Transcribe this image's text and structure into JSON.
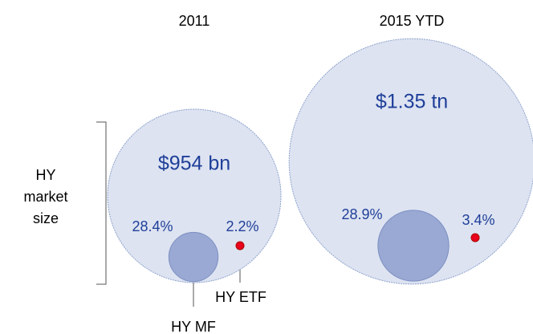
{
  "chart_data": {
    "type": "nested-bubble",
    "categories": [
      "2011",
      "2015 YTD"
    ],
    "values": [
      954,
      1350
    ],
    "value_labels": [
      "$954 bn",
      "$1.35 tn"
    ],
    "color": "#dde3f1",
    "series": [
      {
        "name": "HY MF",
        "color": "#99a9d3",
        "values": [
          28.4,
          28.9
        ],
        "value_labels": [
          "28.4%",
          "28.9%"
        ]
      },
      {
        "name": "HY ETF",
        "color": "#e8001c",
        "values": [
          2.2,
          3.4
        ],
        "value_labels": [
          "2.2%",
          "3.4%"
        ]
      }
    ],
    "annotation": "HY market size"
  }
}
